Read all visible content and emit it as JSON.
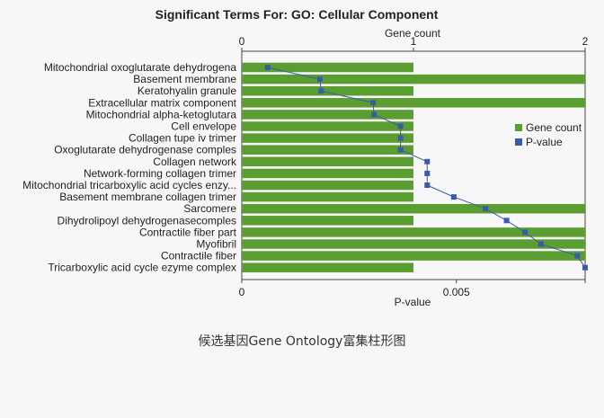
{
  "chart_data": {
    "type": "bar",
    "title": "Significant Terms For: GO: Cellular Component",
    "top_axis_label": "Gene count",
    "bottom_axis_label": "P-value",
    "top_axis": {
      "range": [
        0,
        2
      ],
      "ticks": [
        "0",
        "1",
        "2"
      ]
    },
    "bottom_axis": {
      "range": [
        0,
        0.008
      ],
      "ticks": [
        "0",
        "0.005"
      ]
    },
    "categories": [
      "Mitochondrial oxoglutarate dehydrogena",
      "Basement membrane",
      "Keratohyalin granule",
      "Extracellular matrix component",
      "Mitochondrial alpha-ketoglutara",
      "Cell envelope",
      "Collagen tupe iv trimer",
      "Oxoglutarate dehydrogenase comples",
      "Collagen network",
      "Network-forming collagen trimer",
      "Mitochondrial tricarboxylic acid cycles enzy...",
      "Basement membrane collagen trimer",
      "Sarcomere",
      "Dihydrolipoyl dehydrogenasecomples",
      "Contractile fiber part",
      "Myofibril",
      "Contractile fiber",
      "Tricarboxylic acid cycle ezyme complex"
    ],
    "series": [
      {
        "name": "Gene count",
        "type": "bar",
        "axis": "top",
        "color": "#5a9e32",
        "values": [
          1,
          2,
          1,
          2,
          1,
          1,
          1,
          1,
          1,
          1,
          1,
          1,
          2,
          1,
          2,
          2,
          2,
          1
        ]
      },
      {
        "name": "P-value",
        "type": "line",
        "axis": "bottom",
        "color": "#3b5ba7",
        "values": [
          0.0006,
          0.00182,
          0.00185,
          0.00306,
          0.00308,
          0.0037,
          0.0037,
          0.0037,
          0.00432,
          0.00432,
          0.00432,
          0.00494,
          0.00568,
          0.00617,
          0.0066,
          0.00697,
          0.00782,
          0.008
        ]
      }
    ],
    "legend": {
      "placement": "right"
    },
    "grid": false
  },
  "caption": "候选基因Gene Ontology富集柱形图"
}
